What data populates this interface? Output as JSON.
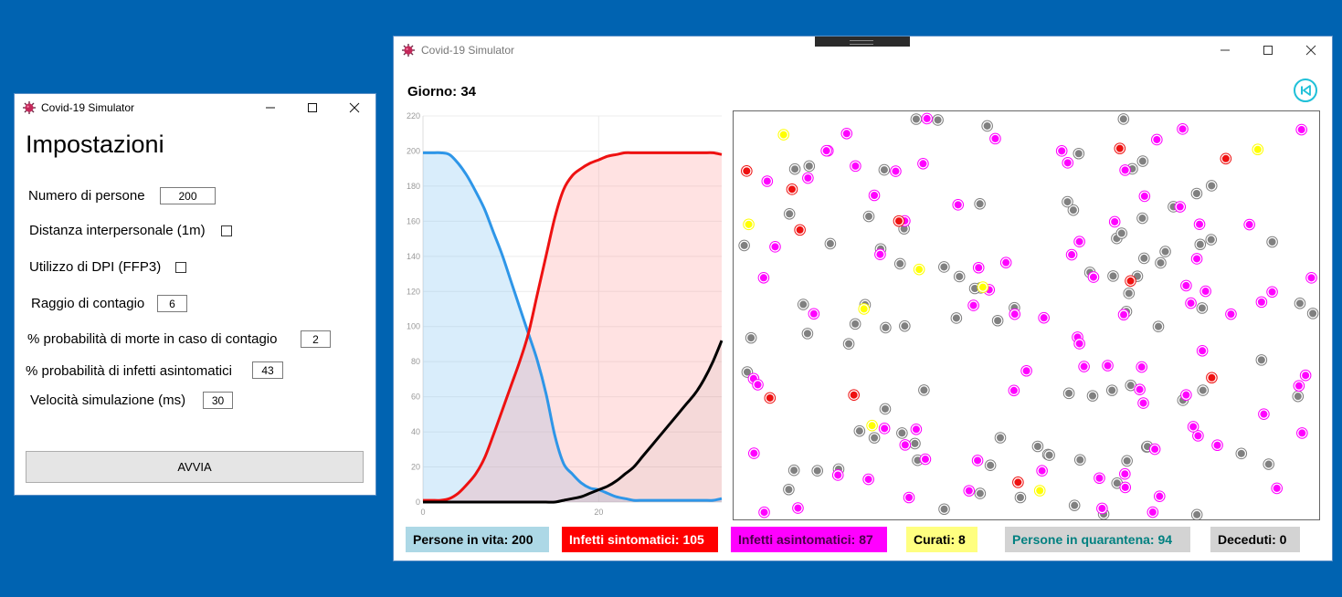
{
  "settings_window": {
    "title": "Covid-19 Simulator",
    "heading": "Impostazioni",
    "fields": {
      "people_label": "Numero di persone",
      "people_value": "200",
      "distance_label": "Distanza interpersonale (1m)",
      "distance_checked": false,
      "ppe_label": "Utilizzo di DPI (FFP3)",
      "ppe_checked": false,
      "radius_label": "Raggio di contagio",
      "radius_value": "6",
      "death_label": "% probabilità di morte in caso di contagio",
      "death_value": "2",
      "asym_label": "% probabilità di infetti asintomatici",
      "asym_value": "43",
      "speed_label": "Velocità simulazione (ms)",
      "speed_value": "30"
    },
    "start_label": "AVVIA"
  },
  "sim_window": {
    "title": "Covid-19 Simulator",
    "day_text": "Giorno: 34",
    "back_icon": "skip-back-icon",
    "legend": [
      {
        "label": "Persone in vita: 200",
        "bg": "#add8e6",
        "fg": "#000000"
      },
      {
        "label": "Infetti sintomatici: 105",
        "bg": "#ff0000",
        "fg": "#ffffff"
      },
      {
        "label": "Infetti asintomatici: 87",
        "bg": "#ff00ff",
        "fg": "#4b004b"
      },
      {
        "label": "Curati: 8",
        "bg": "#ffff80",
        "fg": "#000000"
      },
      {
        "label": "Persone in quarantena: 94",
        "bg": "#d3d3d3",
        "fg": "#008080"
      },
      {
        "label": "Deceduti: 0",
        "bg": "#d3d3d3",
        "fg": "#000000"
      }
    ]
  },
  "colors": {
    "alive": "#2e96e8",
    "symptomatic": "#ee1111",
    "deaths": "#000000",
    "asymptomatic": "#ff00ff",
    "cured": "#ffff00",
    "quarantine": "#808080"
  },
  "chart_data": {
    "type": "area",
    "x_ticks": [
      "0",
      "20"
    ],
    "y_ticks": [
      "0",
      "20",
      "40",
      "60",
      "80",
      "100",
      "120",
      "140",
      "160",
      "180",
      "200",
      "220"
    ],
    "ylim": [
      0,
      220
    ],
    "xlim": [
      0,
      34
    ],
    "grid": true,
    "x": [
      0,
      1,
      2,
      3,
      4,
      5,
      6,
      7,
      8,
      9,
      10,
      11,
      12,
      13,
      14,
      15,
      16,
      17,
      18,
      19,
      20,
      21,
      22,
      23,
      24,
      25,
      26,
      27,
      28,
      29,
      30,
      31,
      32,
      33,
      34
    ],
    "series": [
      {
        "values": [
          199,
          199,
          199,
          198,
          193,
          186,
          177,
          167,
          154,
          141,
          126,
          111,
          96,
          81,
          62,
          38,
          22,
          16,
          11,
          8,
          7,
          5,
          3,
          2,
          1,
          1,
          1,
          1,
          1,
          1,
          1,
          1,
          1,
          1,
          2
        ]
      },
      {
        "values": [
          1,
          1,
          1,
          2,
          5,
          10,
          16,
          25,
          38,
          52,
          66,
          80,
          96,
          118,
          140,
          162,
          178,
          186,
          190,
          193,
          195,
          197,
          198,
          199,
          199,
          199,
          199,
          199,
          199,
          199,
          199,
          199,
          199,
          199,
          198
        ]
      },
      {
        "values": [
          0,
          0,
          0,
          0,
          0,
          0,
          0,
          0,
          0,
          0,
          0,
          0,
          0,
          0,
          0,
          0,
          1,
          2,
          3,
          5,
          7,
          9,
          12,
          16,
          20,
          26,
          32,
          38,
          44,
          50,
          56,
          62,
          70,
          80,
          92
        ]
      }
    ]
  },
  "simulation_dots": {
    "counts": {
      "asymptomatic": 87,
      "quarantine": 94,
      "symptomatic": 11,
      "cured": 8
    }
  }
}
